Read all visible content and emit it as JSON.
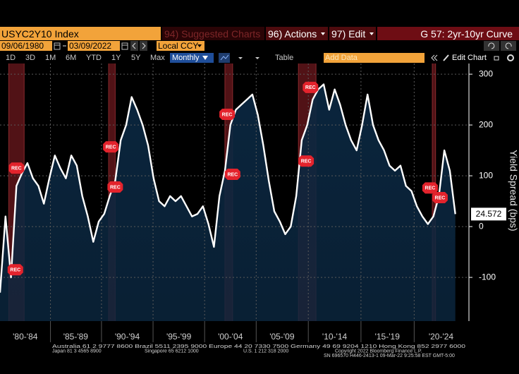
{
  "toolbar": {
    "ticker": "USYC2Y10 Index",
    "menus": [
      "94) Suggested Charts",
      "96) Actions",
      "97) Edit"
    ],
    "start_date": "09/06/1980",
    "end_date": "03/09/2022",
    "currency": "Local CCY",
    "ranges": [
      "1D",
      "3D",
      "1M",
      "6M",
      "YTD",
      "1Y",
      "5Y",
      "Max"
    ],
    "frequency": "Monthly",
    "table": "Table",
    "add_data": "Add Data",
    "edit_chart": "Edit Chart"
  },
  "chart_data": {
    "type": "area",
    "title": "G 57: 2yr-10yr Curve",
    "y_label": "Yield Spread (bps)",
    "x": [
      1980.7,
      1981.2,
      1981.7,
      1982.2,
      1982.7,
      1983.2,
      1983.7,
      1984.2,
      1984.7,
      1985.2,
      1985.7,
      1986.2,
      1986.7,
      1987.2,
      1987.7,
      1988.2,
      1988.7,
      1989.2,
      1989.7,
      1990.2,
      1990.7,
      1991.2,
      1991.7,
      1992.2,
      1992.7,
      1993.2,
      1993.7,
      1994.2,
      1994.7,
      1995.2,
      1995.7,
      1996.2,
      1996.7,
      1997.2,
      1997.7,
      1998.2,
      1998.7,
      1999.2,
      1999.7,
      2000.2,
      2000.7,
      2001.2,
      2001.7,
      2002.2,
      2002.7,
      2003.2,
      2003.7,
      2004.2,
      2004.7,
      2005.2,
      2005.7,
      2006.2,
      2006.7,
      2007.2,
      2007.7,
      2008.2,
      2008.7,
      2009.2,
      2009.7,
      2010.2,
      2010.7,
      2011.2,
      2011.7,
      2012.2,
      2012.7,
      2013.2,
      2013.7,
      2014.2,
      2014.7,
      2015.2,
      2015.7,
      2016.2,
      2016.7,
      2017.2,
      2017.7,
      2018.2,
      2018.7,
      2019.2,
      2019.7,
      2020.2,
      2020.7,
      2021.2,
      2021.7,
      2022.2
    ],
    "values": [
      -130,
      20,
      -100,
      80,
      105,
      125,
      95,
      80,
      45,
      95,
      140,
      115,
      95,
      140,
      120,
      60,
      20,
      -30,
      10,
      25,
      60,
      90,
      170,
      200,
      255,
      230,
      200,
      160,
      95,
      50,
      40,
      60,
      50,
      60,
      40,
      20,
      25,
      40,
      5,
      -40,
      60,
      110,
      200,
      230,
      240,
      250,
      260,
      220,
      160,
      90,
      30,
      10,
      -15,
      0,
      60,
      170,
      200,
      250,
      270,
      280,
      230,
      270,
      240,
      200,
      170,
      150,
      200,
      260,
      200,
      170,
      150,
      120,
      110,
      120,
      80,
      70,
      40,
      20,
      5,
      20,
      60,
      150,
      110,
      24.572
    ],
    "color": "#ffffff",
    "fill": "#0b2740",
    "xlim": [
      1980.7,
      2023.44
    ],
    "ylim": [
      -186,
      321
    ],
    "yticks": [
      -100,
      0,
      100,
      200,
      300
    ],
    "xticks": [
      {
        "value": 1983,
        "label": "'80-'84"
      },
      {
        "value": 1987.6,
        "label": "'85-'89"
      },
      {
        "value": 1992.3,
        "label": "'90-'94"
      },
      {
        "value": 1997,
        "label": "'95-'99"
      },
      {
        "value": 2001.7,
        "label": "'00-'04"
      },
      {
        "value": 2006.4,
        "label": "'05-'09"
      },
      {
        "value": 2011.2,
        "label": "'10-'14"
      },
      {
        "value": 2016,
        "label": "'15-'19"
      },
      {
        "value": 2020.9,
        "label": "'20-'24"
      }
    ],
    "grid": true,
    "bands": [
      {
        "start": 1981.5,
        "end": 1982.9
      },
      {
        "start": 1990.6,
        "end": 1991.2
      },
      {
        "start": 2001.2,
        "end": 2001.9
      },
      {
        "start": 2007.9,
        "end": 2009.5
      },
      {
        "start": 2020.1,
        "end": 2020.4
      }
    ],
    "band_color": "#5a1418",
    "annotations": [
      {
        "text": "REC",
        "x": 1982.2,
        "y": 115
      },
      {
        "text": "REC",
        "x": 1982.1,
        "y": -85
      },
      {
        "text": "REC",
        "x": 1990.8,
        "y": 157
      },
      {
        "text": "REC",
        "x": 1991.2,
        "y": 78
      },
      {
        "text": "REC",
        "x": 2001.4,
        "y": 221
      },
      {
        "text": "REC",
        "x": 2001.9,
        "y": 103
      },
      {
        "text": "REC",
        "x": 2009.0,
        "y": 274
      },
      {
        "text": "REC",
        "x": 2008.6,
        "y": 129
      },
      {
        "text": "REC",
        "x": 2019.9,
        "y": 76
      },
      {
        "text": "REC",
        "x": 2020.8,
        "y": 57
      }
    ]
  },
  "footer": {
    "line1": "Australia 61 2 9777 8600 Brazil 5511 2395 9000 Europe 44 20 7330 7500 Germany 49 69 9204 1210 Hong Kong 852 2977 6000",
    "line2": [
      "Japan 81 3 4565 8900",
      "Singapore 65 6212 1000",
      "U.S. 1 212 318 2000",
      "Copyright 2022 Bloomberg Finance L.P."
    ],
    "line3": "SN 696570 H446-2413-1 09-Mar-22  9:25:58 EST  GMT-5:00"
  }
}
